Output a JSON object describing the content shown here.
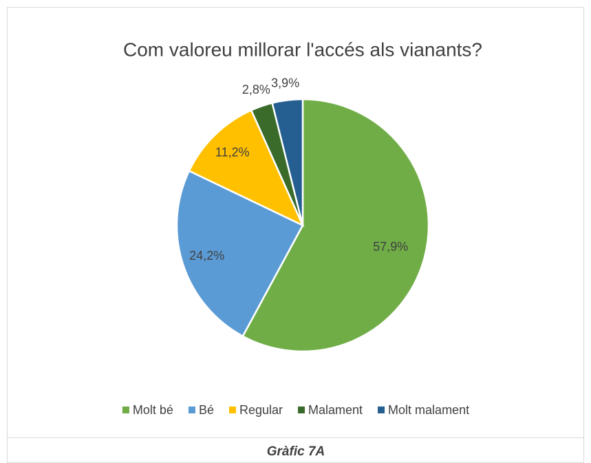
{
  "chart_data": {
    "type": "pie",
    "title": "Com valoreu millorar l'accés als vianants?",
    "categories": [
      "Molt bé",
      "Bé",
      "Regular",
      "Malament",
      "Molt malament"
    ],
    "values": [
      57.9,
      24.2,
      11.2,
      2.8,
      3.9
    ],
    "value_labels": [
      "57,9%",
      "24,2%",
      "11,2%",
      "2,8%",
      "3,9%"
    ],
    "colors": [
      "#70ad47",
      "#5b9bd5",
      "#ffc000",
      "#3a6b2a",
      "#255e91"
    ],
    "legend": "bottom"
  },
  "caption": "Gràfic 7A"
}
